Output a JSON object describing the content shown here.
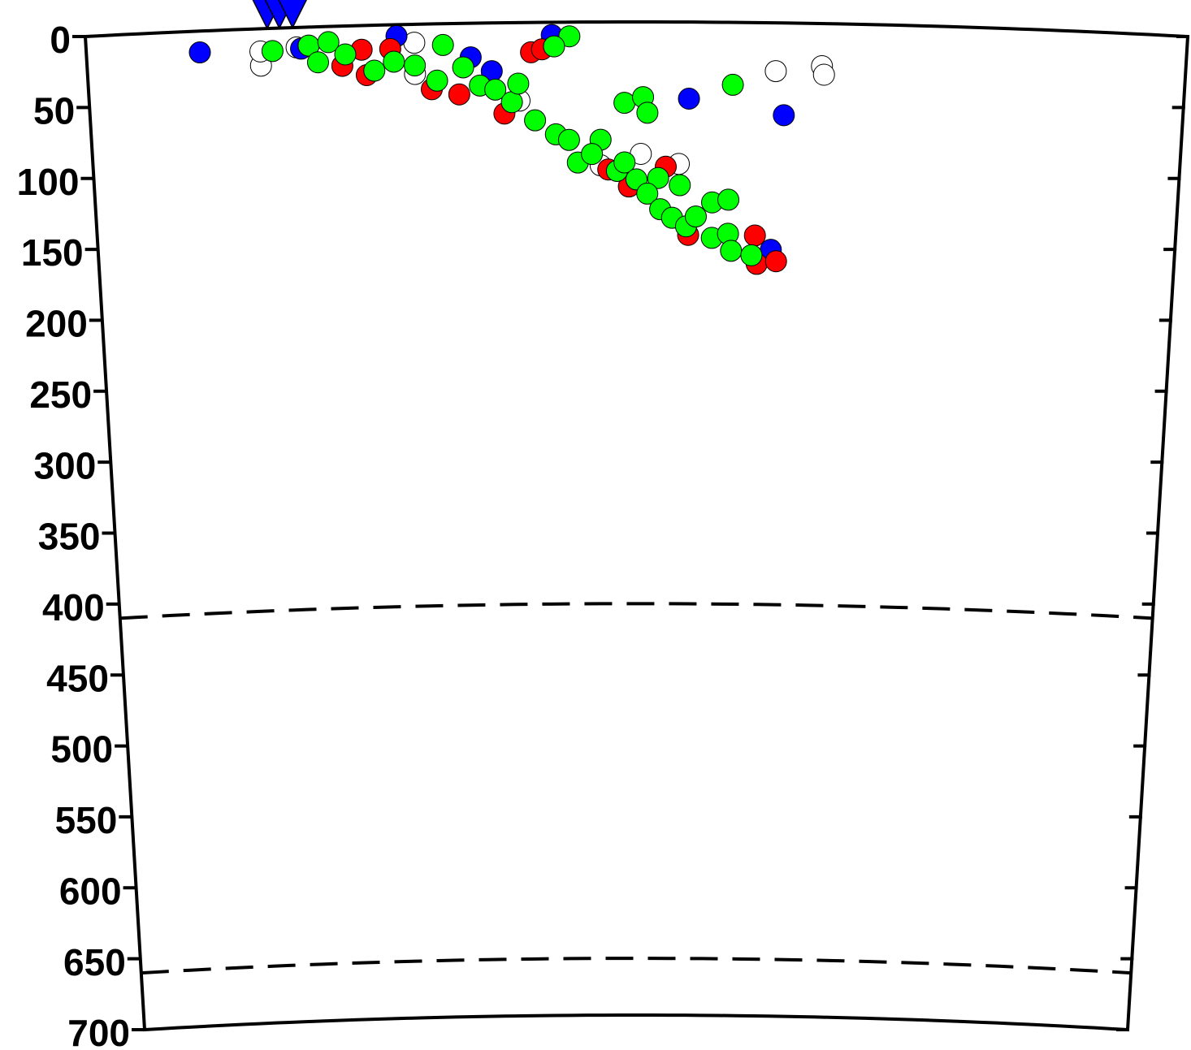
{
  "chart_data": {
    "type": "scatter",
    "xlim": [
      0,
      100
    ],
    "ylim": [
      0,
      700
    ],
    "y_inverted": true,
    "yticks": [
      0,
      50,
      100,
      150,
      200,
      250,
      300,
      350,
      400,
      450,
      500,
      550,
      600,
      650,
      700
    ],
    "reference_lines": [
      410,
      660
    ],
    "series": [
      {
        "marker": "circle",
        "color": "#ffffff",
        "x": [
          15.8,
          15.8,
          19.1,
          29.8,
          29.8,
          62.7,
          66.9,
          67.1,
          50.4,
          53.9,
          46.7,
          39.3
        ],
        "values": [
          26,
          16,
          14,
          13,
          35,
          34,
          30,
          36,
          93,
          100,
          101,
          55
        ]
      },
      {
        "marker": "circle",
        "color": "#0000ff",
        "x": [
          10.3,
          28.2,
          34.9,
          36.8,
          54.8,
          63.5,
          42.3,
          19.5,
          62.5
        ],
        "values": [
          15,
          8,
          24,
          34,
          54,
          65,
          9,
          15,
          160
        ]
      },
      {
        "marker": "circle",
        "color": "#ff0000",
        "x": [
          23.2,
          25.4,
          25.0,
          27.6,
          40.4,
          41.4,
          31.3,
          33.8,
          37.9,
          47.4,
          49.3,
          52.7,
          61.0,
          61.2,
          63.0,
          54.8
        ],
        "values": [
          28,
          35,
          17,
          17,
          21,
          19,
          46,
          50,
          64,
          104,
          116,
          102,
          150,
          170,
          168,
          150
        ]
      },
      {
        "marker": "circle",
        "color": "#00ff00",
        "x": [
          16.9,
          20.2,
          22.0,
          21.0,
          23.5,
          26.1,
          27.9,
          29.8,
          32.4,
          31.8,
          34.2,
          35.7,
          37.1,
          38.6,
          39.2,
          40.7,
          42.6,
          43.8,
          44.6,
          46.7,
          45.9,
          48.2,
          48.9,
          50.0,
          52.0,
          54.0,
          51.0,
          52.2,
          53.3,
          54.6,
          55.5,
          57.0,
          58.5,
          57.0,
          58.5,
          58.8,
          60.7,
          58.8,
          48.9,
          50.6,
          51.0,
          43.9,
          42.5
        ],
        "values": [
          16,
          13,
          11,
          25,
          20,
          32,
          26,
          29,
          15,
          40,
          31,
          44,
          47,
          56,
          43,
          69,
          79,
          83,
          99,
          83,
          93,
          105,
          99,
          111,
          110,
          115,
          121,
          132,
          138,
          144,
          137,
          127,
          125,
          152,
          149,
          161,
          164,
          44,
          57,
          53,
          64,
          10,
          17
        ]
      },
      {
        "marker": "triangle",
        "color": "#0000ff",
        "x": [
          16.5,
          17.6,
          18.8
        ],
        "values": [
          0,
          0,
          0
        ]
      }
    ]
  }
}
